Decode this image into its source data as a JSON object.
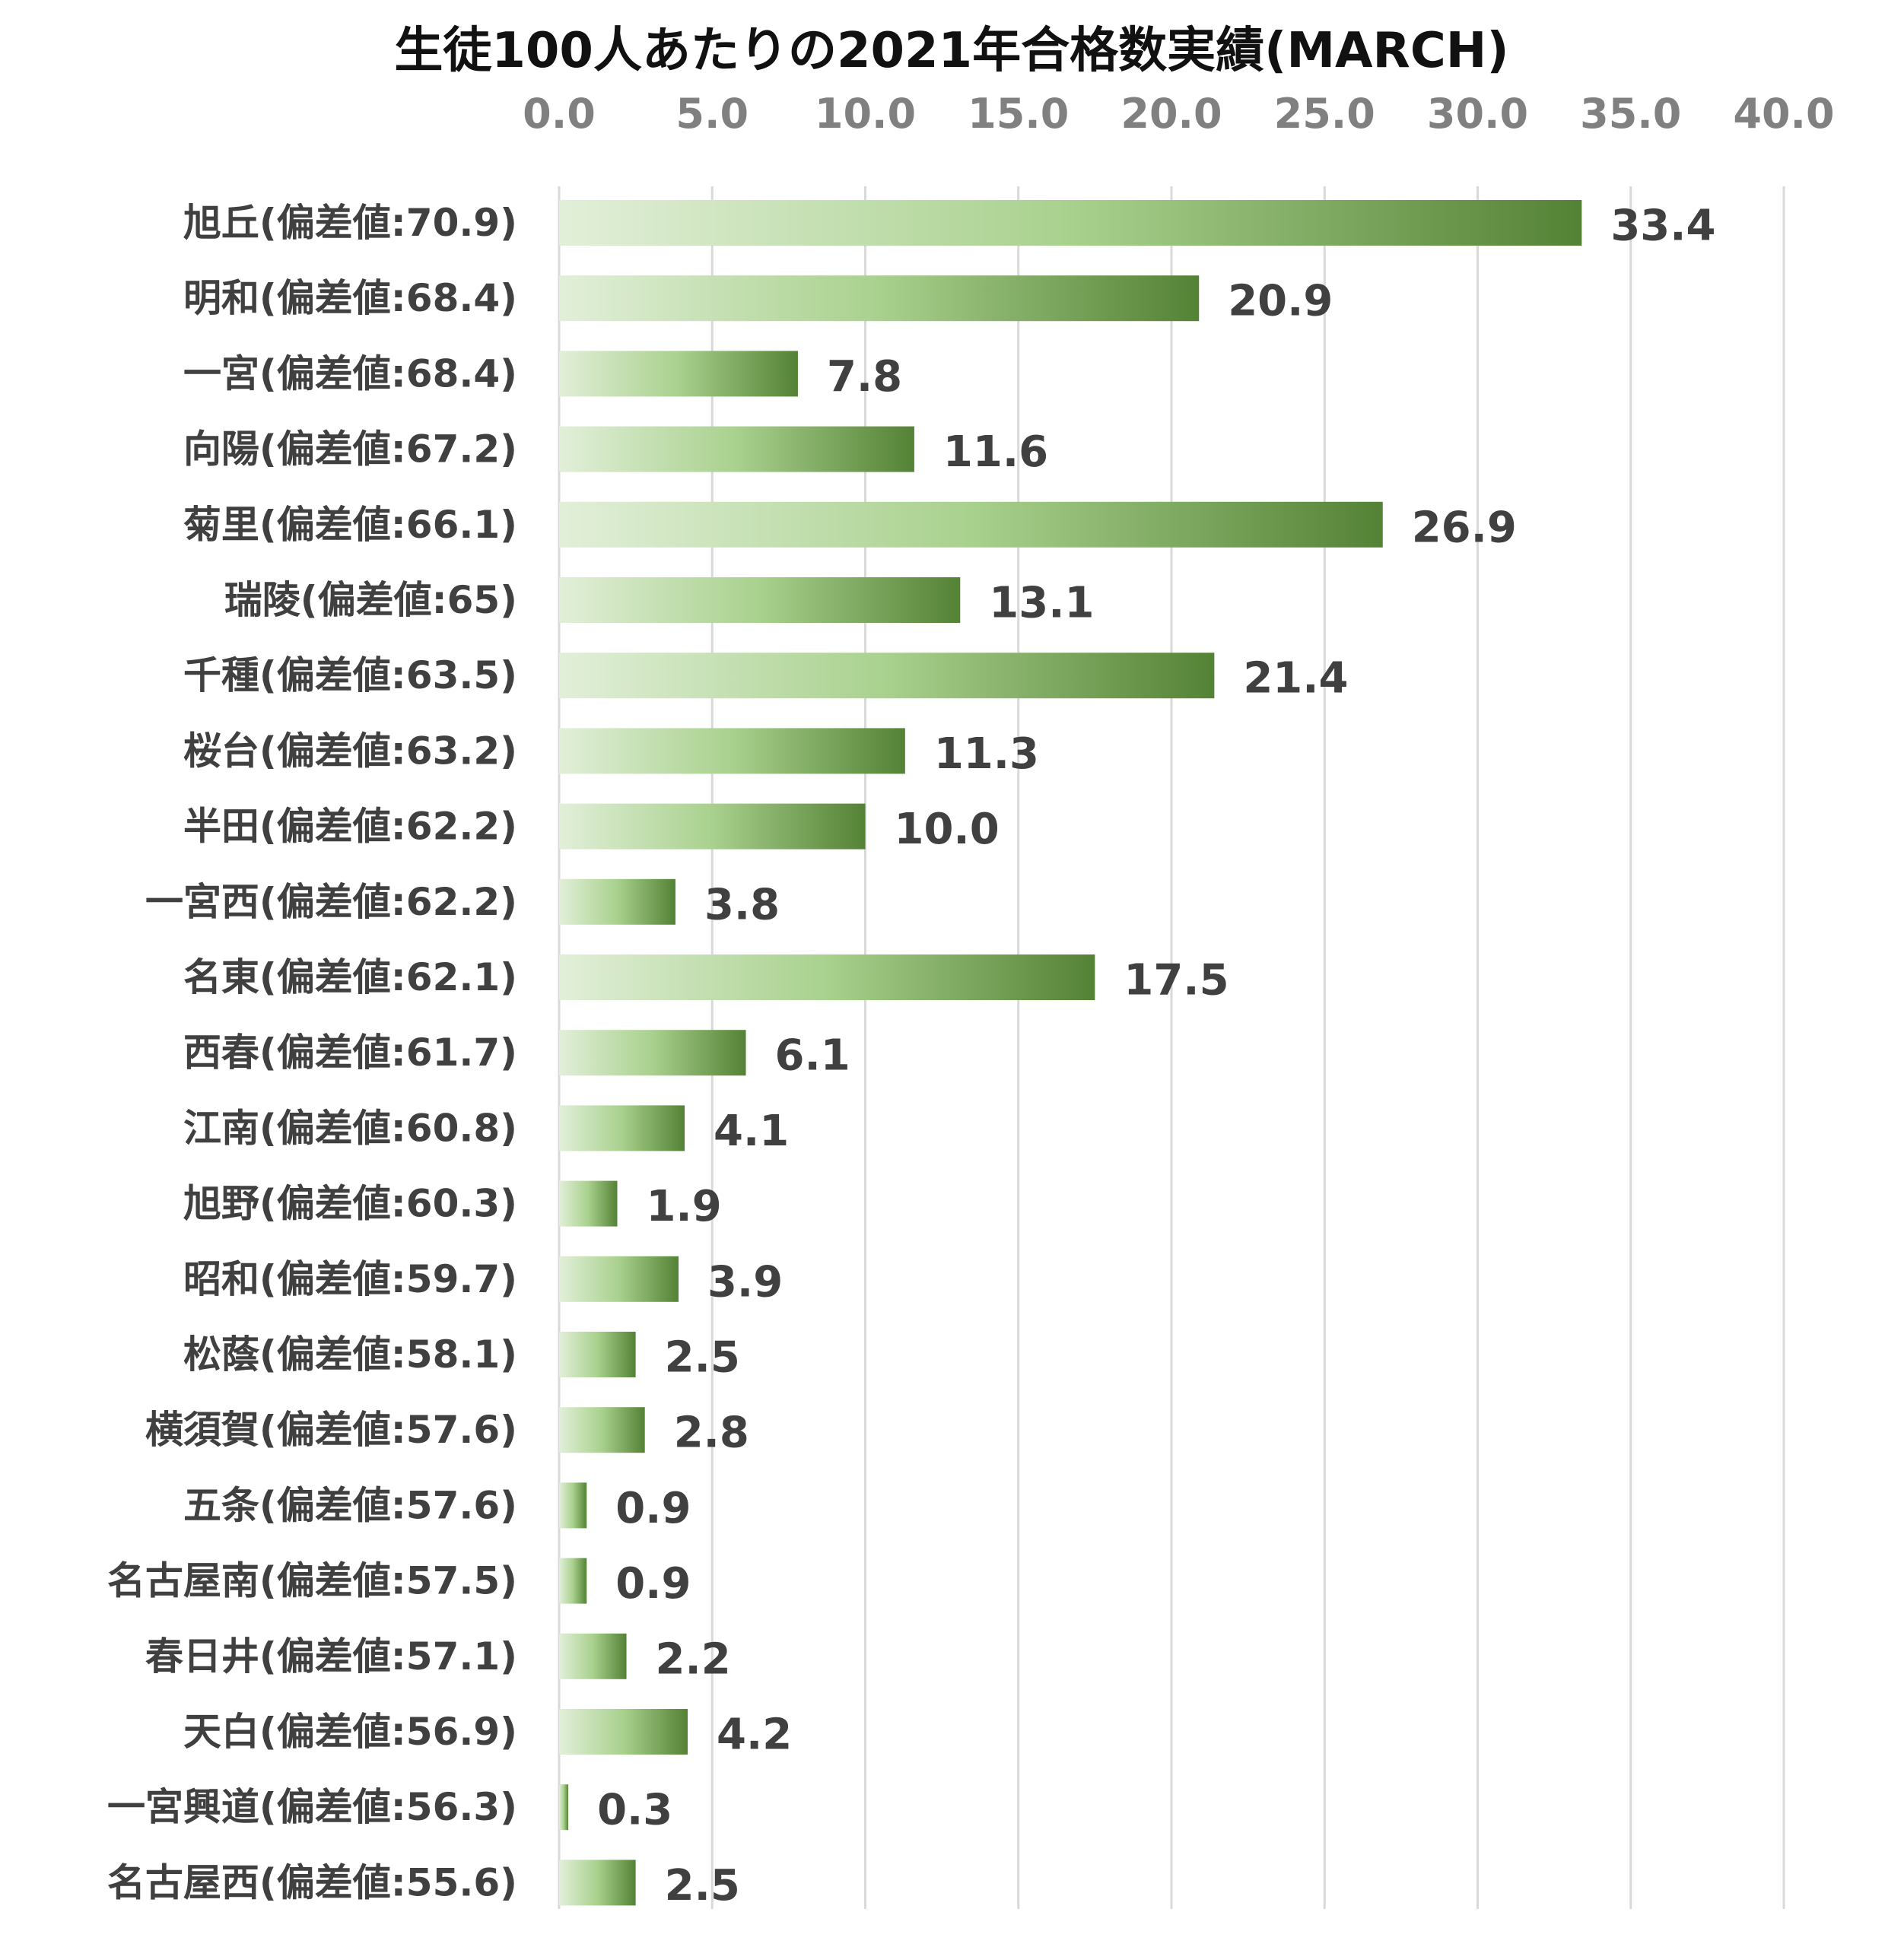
{
  "chart_data": {
    "type": "bar",
    "orientation": "horizontal",
    "title": "生徒100人あたりの2021年合格数実績(MARCH)",
    "xlabel": "",
    "ylabel": "",
    "xlim": [
      0,
      40
    ],
    "x_ticks": [
      "0.0",
      "5.0",
      "10.0",
      "15.0",
      "20.0",
      "25.0",
      "30.0",
      "35.0",
      "40.0"
    ],
    "x_axis_position": "top",
    "grid": true,
    "legend": "none",
    "bar_color_start": "#e2efd9",
    "bar_color_end": "#548235",
    "categories": [
      "旭丘(偏差値:70.9)",
      "明和(偏差値:68.4)",
      "一宮(偏差値:68.4)",
      "向陽(偏差値:67.2)",
      "菊里(偏差値:66.1)",
      "瑞陵(偏差値:65)",
      "千種(偏差値:63.5)",
      "桜台(偏差値:63.2)",
      "半田(偏差値:62.2)",
      "一宮西(偏差値:62.2)",
      "名東(偏差値:62.1)",
      "西春(偏差値:61.7)",
      "江南(偏差値:60.8)",
      "旭野(偏差値:60.3)",
      "昭和(偏差値:59.7)",
      "松蔭(偏差値:58.1)",
      "横須賀(偏差値:57.6)",
      "五条(偏差値:57.6)",
      "名古屋南(偏差値:57.5)",
      "春日井(偏差値:57.1)",
      "天白(偏差値:56.9)",
      "一宮興道(偏差値:56.3)",
      "名古屋西(偏差値:55.6)"
    ],
    "values": [
      33.4,
      20.9,
      7.8,
      11.6,
      26.9,
      13.1,
      21.4,
      11.3,
      10.0,
      3.8,
      17.5,
      6.1,
      4.1,
      1.9,
      3.9,
      2.5,
      2.8,
      0.9,
      0.9,
      2.2,
      4.2,
      0.3,
      2.5
    ],
    "data_labels": [
      "33.4",
      "20.9",
      "7.8",
      "11.6",
      "26.9",
      "13.1",
      "21.4",
      "11.3",
      "10.0",
      "3.8",
      "17.5",
      "6.1",
      "4.1",
      "1.9",
      "3.9",
      "2.5",
      "2.8",
      "0.9",
      "0.9",
      "2.2",
      "4.2",
      "0.3",
      "2.5"
    ]
  }
}
